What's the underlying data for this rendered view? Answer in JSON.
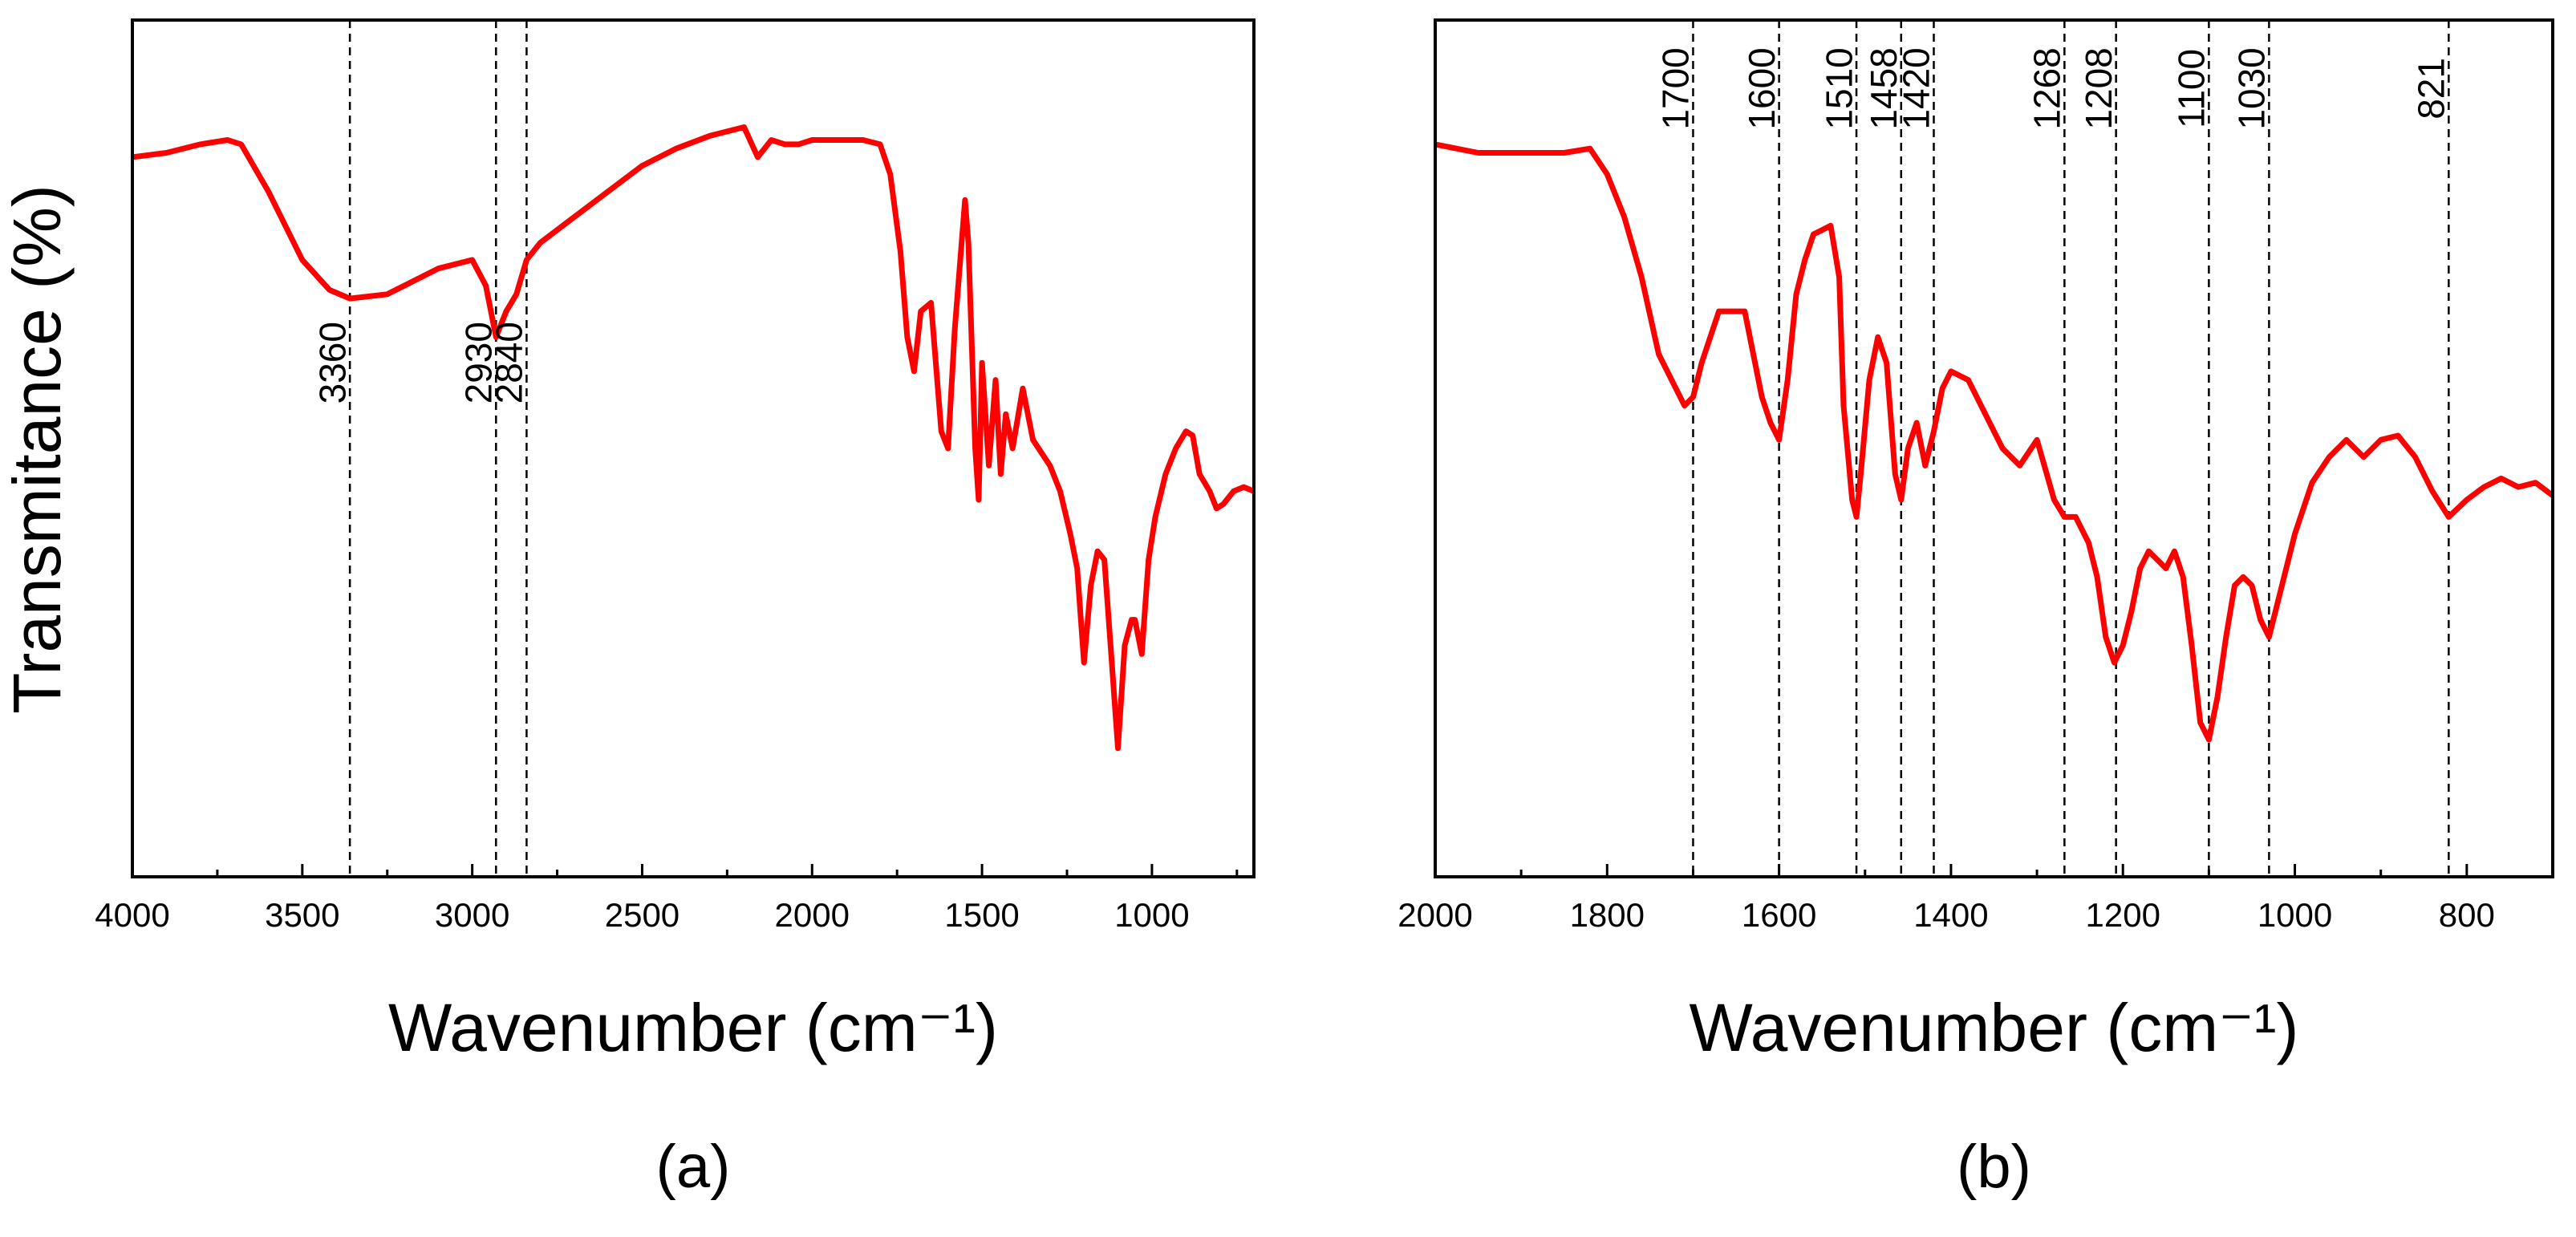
{
  "colors": {
    "spectrum": "#ff0000",
    "axes": "#000000"
  },
  "figure": {
    "ylabel": "Transmitance (%)"
  },
  "chart_data": [
    {
      "type": "line",
      "panel_label": "(a)",
      "xlabel": "Wavenumber (cm⁻¹)",
      "ylabel": "Transmitance (%)",
      "xlim": [
        4000,
        700
      ],
      "ylim": [
        0,
        100
      ],
      "x_reversed": true,
      "xticks": [
        4000,
        3500,
        3000,
        2500,
        2000,
        1500,
        1000
      ],
      "xtick_labels": [
        "4000",
        "3500",
        "3000",
        "2500",
        "2000",
        "1500",
        "1000"
      ],
      "minor_xticks": [
        3750,
        3250,
        2750,
        2250,
        1750,
        1250,
        750
      ],
      "y_tick_labels_shown": false,
      "peak_markers": [
        {
          "x": 3360,
          "label": "3360",
          "label_y": 60
        },
        {
          "x": 2930,
          "label": "2930",
          "label_y": 60
        },
        {
          "x": 2840,
          "label": "2840",
          "label_y": 60
        }
      ],
      "series": [
        {
          "name": "spectrum",
          "x": [
            4000,
            3900,
            3800,
            3720,
            3680,
            3600,
            3500,
            3420,
            3360,
            3250,
            3100,
            3000,
            2960,
            2930,
            2900,
            2870,
            2840,
            2800,
            2700,
            2600,
            2500,
            2400,
            2300,
            2200,
            2160,
            2120,
            2080,
            2040,
            2000,
            1960,
            1900,
            1850,
            1800,
            1770,
            1740,
            1720,
            1700,
            1680,
            1650,
            1620,
            1600,
            1580,
            1550,
            1540,
            1520,
            1510,
            1500,
            1480,
            1460,
            1445,
            1430,
            1410,
            1380,
            1350,
            1300,
            1270,
            1240,
            1220,
            1200,
            1180,
            1160,
            1140,
            1120,
            1100,
            1080,
            1060,
            1050,
            1030,
            1010,
            990,
            960,
            930,
            900,
            880,
            860,
            830,
            810,
            790,
            760,
            730,
            700
          ],
          "y": [
            84,
            84.5,
            85.5,
            86,
            85.5,
            80,
            72,
            68.5,
            67.5,
            68,
            71,
            72,
            69,
            63,
            66,
            68,
            72,
            74,
            77,
            80,
            83,
            85,
            86.5,
            87.5,
            84,
            86,
            85.5,
            85.5,
            86,
            86,
            86,
            86,
            85.5,
            82,
            73,
            63,
            59,
            66,
            67,
            52,
            50,
            64,
            79,
            74,
            50,
            44,
            60,
            48,
            58,
            47,
            54,
            50,
            57,
            51,
            48,
            45,
            40,
            36,
            25,
            34,
            38,
            37,
            26,
            15,
            27,
            30,
            30,
            26,
            37,
            42,
            47,
            50,
            52,
            51.5,
            47,
            45,
            43,
            43.5,
            45,
            45.5,
            45
          ]
        }
      ]
    },
    {
      "type": "line",
      "panel_label": "(b)",
      "xlabel": "Wavenumber (cm⁻¹)",
      "ylabel": "",
      "xlim": [
        2000,
        700
      ],
      "ylim": [
        0,
        100
      ],
      "x_reversed": true,
      "xticks": [
        2000,
        1800,
        1600,
        1400,
        1200,
        1000,
        800
      ],
      "xtick_labels": [
        "2000",
        "1800",
        "1600",
        "1400",
        "1200",
        "1000",
        "800"
      ],
      "minor_xticks": [
        1900,
        1700,
        1500,
        1300,
        1100,
        900
      ],
      "y_tick_labels_shown": false,
      "peak_markers": [
        {
          "x": 1700,
          "label": "1700",
          "label_y": 92
        },
        {
          "x": 1600,
          "label": "1600",
          "label_y": 92
        },
        {
          "x": 1510,
          "label": "1510",
          "label_y": 92
        },
        {
          "x": 1458,
          "label": "1458",
          "label_y": 92
        },
        {
          "x": 1420,
          "label": "1420",
          "label_y": 92
        },
        {
          "x": 1268,
          "label": "1268",
          "label_y": 92
        },
        {
          "x": 1208,
          "label": "1208",
          "label_y": 92
        },
        {
          "x": 1100,
          "label": "1100",
          "label_y": 92
        },
        {
          "x": 1030,
          "label": "1030",
          "label_y": 92
        },
        {
          "x": 821,
          "label": "821",
          "label_y": 92
        }
      ],
      "series": [
        {
          "name": "spectrum",
          "x": [
            2000,
            1950,
            1900,
            1850,
            1820,
            1800,
            1780,
            1760,
            1740,
            1720,
            1710,
            1700,
            1690,
            1670,
            1650,
            1640,
            1630,
            1620,
            1610,
            1600,
            1590,
            1580,
            1570,
            1560,
            1550,
            1540,
            1530,
            1525,
            1515,
            1510,
            1505,
            1495,
            1485,
            1475,
            1465,
            1458,
            1450,
            1440,
            1430,
            1420,
            1410,
            1400,
            1380,
            1360,
            1340,
            1320,
            1300,
            1280,
            1268,
            1255,
            1240,
            1230,
            1220,
            1210,
            1200,
            1190,
            1180,
            1170,
            1160,
            1150,
            1140,
            1130,
            1120,
            1110,
            1100,
            1090,
            1080,
            1070,
            1060,
            1050,
            1040,
            1030,
            1020,
            1000,
            980,
            960,
            940,
            920,
            900,
            880,
            860,
            840,
            821,
            800,
            780,
            760,
            740,
            720,
            700
          ],
          "y": [
            85.5,
            84.5,
            84.5,
            84.5,
            85,
            82,
            77,
            70,
            61,
            57,
            55,
            56,
            60,
            66,
            66,
            66,
            61,
            56,
            53,
            51,
            58,
            68,
            72,
            75,
            75.5,
            76,
            70,
            55,
            44,
            42,
            47,
            58,
            63,
            60,
            47,
            44,
            50,
            53,
            48,
            52,
            57,
            59,
            58,
            54,
            50,
            48,
            51,
            44,
            42,
            42,
            39,
            35,
            28,
            25,
            27,
            31,
            36,
            38,
            37,
            36,
            38,
            35,
            27,
            18,
            16,
            21,
            28,
            34,
            35,
            34,
            30,
            28,
            32,
            40,
            46,
            49,
            51,
            49,
            51,
            51.5,
            49,
            45,
            42,
            44,
            45.5,
            46.5,
            45.5,
            46,
            44.5
          ]
        }
      ]
    }
  ]
}
